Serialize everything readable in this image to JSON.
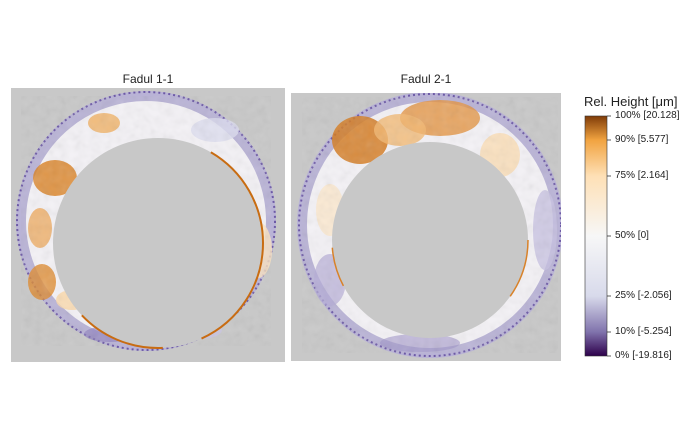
{
  "panels": [
    {
      "title": "Fadul 1-1"
    },
    {
      "title": "Fadul 2-1"
    }
  ],
  "colorbar": {
    "title": "Rel. Height [μm]",
    "labels": [
      {
        "text": "100% [20.128]",
        "percent": 100
      },
      {
        "text": "90% [5.577]",
        "percent": 90
      },
      {
        "text": "75% [2.164]",
        "percent": 75
      },
      {
        "text": "50% [0]",
        "percent": 50
      },
      {
        "text": "25% [-2.056]",
        "percent": 25
      },
      {
        "text": "10% [-5.254]",
        "percent": 10
      },
      {
        "text": "0% [-19.816]",
        "percent": 0
      }
    ],
    "colors": {
      "max": "#7f3b08",
      "high": "#e08214",
      "upper": "#fdb863",
      "mid": "#f7f7f7",
      "lower": "#d8daeb",
      "low": "#8073ac",
      "min": "#2d004b"
    }
  },
  "chart_data": {
    "type": "heatmap",
    "panels": [
      "Fadul 1-1",
      "Fadul 2-1"
    ],
    "colorscale": {
      "percentiles": [
        0,
        10,
        25,
        50,
        75,
        90,
        100
      ],
      "values_um": [
        -19.816,
        -5.254,
        -2.056,
        0,
        2.164,
        5.577,
        20.128
      ]
    },
    "background_color": "#c8c8c8"
  }
}
